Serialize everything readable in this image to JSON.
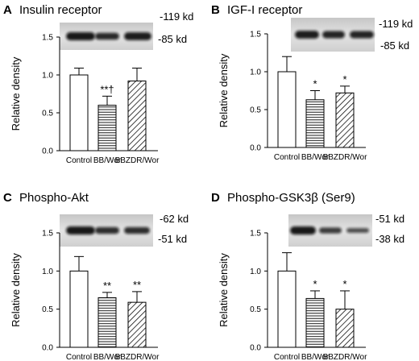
{
  "chart_data": [
    {
      "type": "bar",
      "panel_letter": "A",
      "title": "Insulin receptor",
      "blot_labels": [
        "-119 kd",
        "-85 kd"
      ],
      "ylabel": "Relative density",
      "ylim": [
        0,
        1.5
      ],
      "yticks": [
        "0.0",
        "0.5",
        "1.0",
        "1.5"
      ],
      "categories": [
        "Control",
        "BB/Wor",
        "BBZDR/Wor"
      ],
      "values": [
        1.0,
        0.6,
        0.92
      ],
      "errors": [
        0.09,
        0.12,
        0.17
      ],
      "annotations": [
        "",
        "**†",
        ""
      ],
      "fills": [
        "open",
        "horizontal-hatch",
        "diagonal-hatch"
      ]
    },
    {
      "type": "bar",
      "panel_letter": "B",
      "title": "IGF-I receptor",
      "blot_labels": [
        "-119 kd",
        "-85 kd"
      ],
      "ylabel": "Relative density",
      "ylim": [
        0,
        1.5
      ],
      "yticks": [
        "0.0",
        "0.5",
        "1.0",
        "1.5"
      ],
      "categories": [
        "Control",
        "BB/Wor",
        "BBZDR/Wor"
      ],
      "values": [
        1.0,
        0.63,
        0.72
      ],
      "errors": [
        0.2,
        0.12,
        0.09
      ],
      "annotations": [
        "",
        "*",
        "*"
      ],
      "fills": [
        "open",
        "horizontal-hatch",
        "diagonal-hatch"
      ]
    },
    {
      "type": "bar",
      "panel_letter": "C",
      "title": "Phospho-Akt",
      "blot_labels": [
        "-62 kd",
        "-51 kd"
      ],
      "ylabel": "Relative density",
      "ylim": [
        0,
        1.5
      ],
      "yticks": [
        "0.0",
        "0.5",
        "1.0",
        "1.5"
      ],
      "categories": [
        "Control",
        "BB/Wor",
        "BBZDR/Wor"
      ],
      "values": [
        1.0,
        0.65,
        0.59
      ],
      "errors": [
        0.19,
        0.07,
        0.14
      ],
      "annotations": [
        "",
        "**",
        "**"
      ],
      "fills": [
        "open",
        "horizontal-hatch",
        "diagonal-hatch"
      ]
    },
    {
      "type": "bar",
      "panel_letter": "D",
      "title": "Phospho-GSK3β (Ser9)",
      "blot_labels": [
        "-51 kd",
        "-38 kd"
      ],
      "ylabel": "Relative density",
      "ylim": [
        0,
        1.5
      ],
      "yticks": [
        "0.0",
        "0.5",
        "1.0",
        "1.5"
      ],
      "categories": [
        "Control",
        "BB/Wor",
        "BBZDR/Wor"
      ],
      "values": [
        1.0,
        0.64,
        0.5
      ],
      "errors": [
        0.24,
        0.1,
        0.24
      ],
      "annotations": [
        "",
        "*",
        "*"
      ],
      "fills": [
        "open",
        "horizontal-hatch",
        "diagonal-hatch"
      ]
    }
  ]
}
